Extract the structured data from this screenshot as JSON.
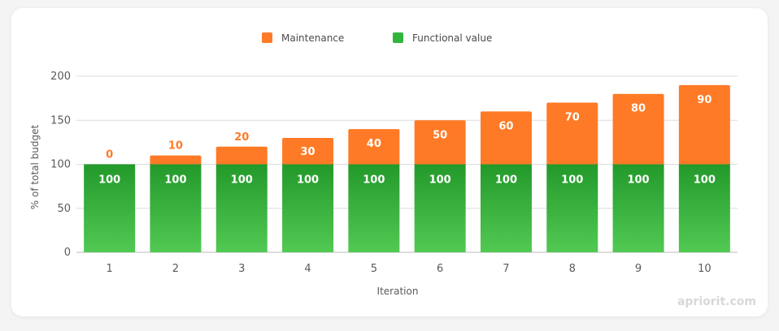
{
  "chart_data": {
    "type": "bar",
    "stacked": true,
    "categories": [
      "1",
      "2",
      "3",
      "4",
      "5",
      "6",
      "7",
      "8",
      "9",
      "10"
    ],
    "series": [
      {
        "name": "Functional value",
        "values": [
          100,
          100,
          100,
          100,
          100,
          100,
          100,
          100,
          100,
          100
        ],
        "color": "#33b53d"
      },
      {
        "name": "Maintenance",
        "values": [
          0,
          10,
          20,
          30,
          40,
          50,
          60,
          70,
          80,
          90
        ],
        "color": "#ff7a26"
      }
    ],
    "legend_order": [
      "Maintenance",
      "Functional value"
    ],
    "legend_position": "top-center",
    "xlabel": "Iteration",
    "ylabel": "% of total budget",
    "ylim": [
      0,
      200
    ],
    "yticks": [
      0,
      50,
      100,
      150,
      200
    ],
    "grid": true
  },
  "watermark": "apriorit.com"
}
